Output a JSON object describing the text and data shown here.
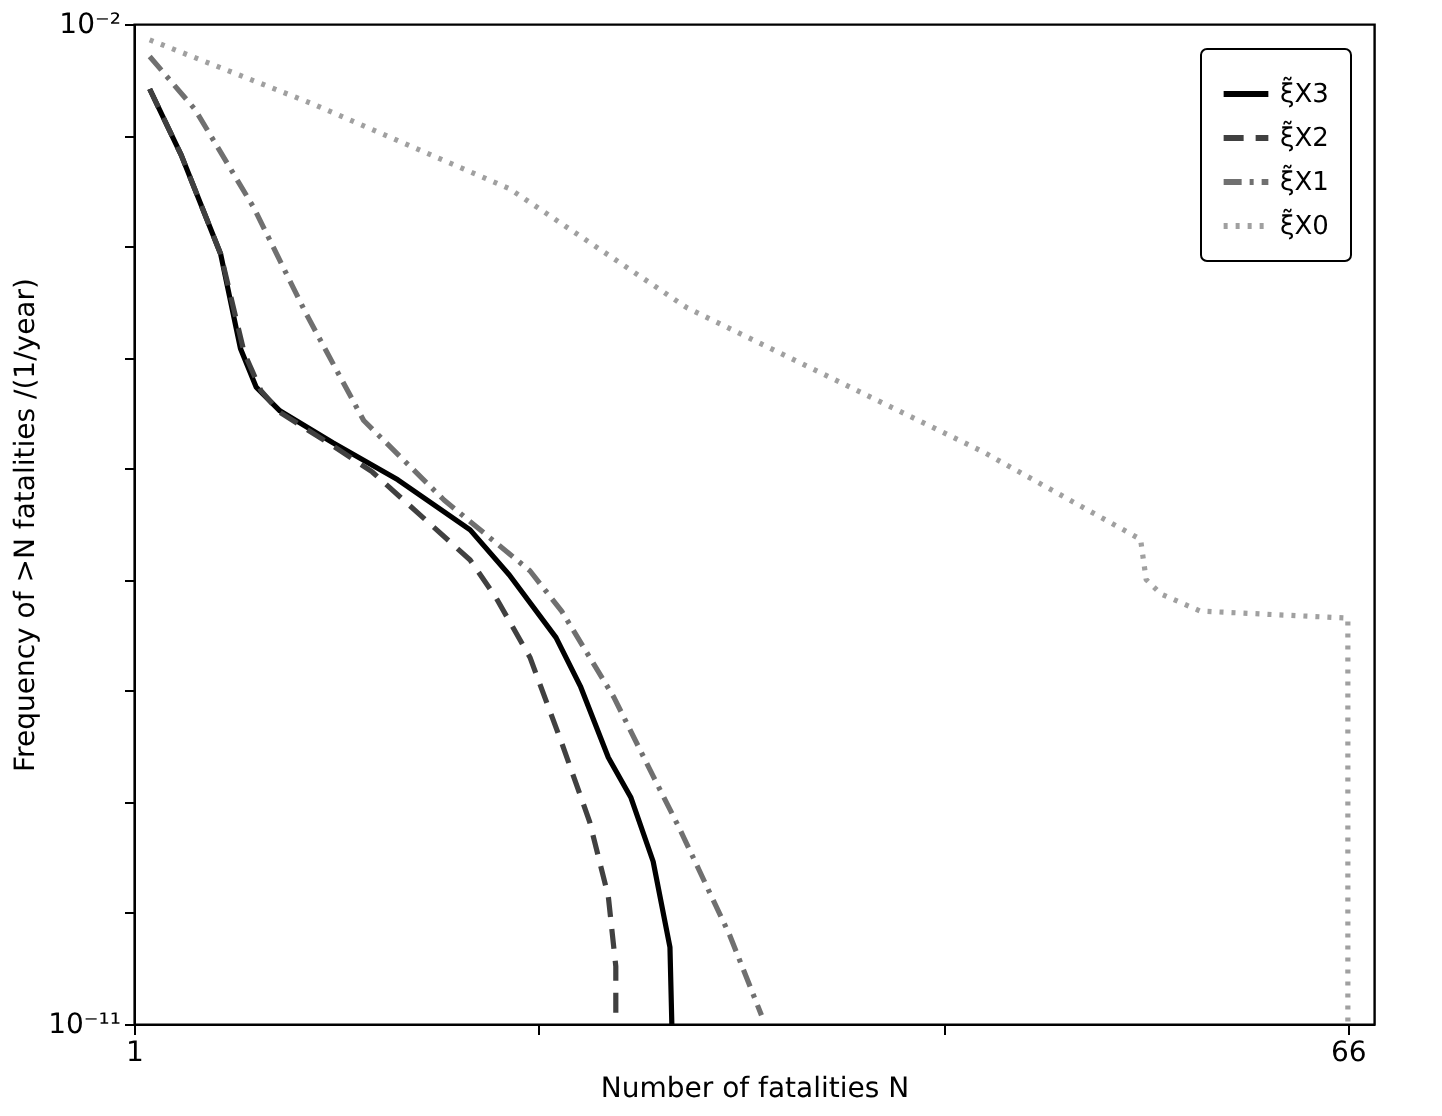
{
  "chart_data": {
    "type": "line",
    "xlabel": "Number of fatalities N",
    "ylabel": "Frequency of >N fatalities /(1/year)",
    "log": "y",
    "grid": false,
    "legend": "top right",
    "marker": "none",
    "tick_labels": "xy",
    "xlim": [
      1,
      67.4
    ],
    "xticks": [
      1,
      {
        "value": 22.67,
        "label": null
      },
      {
        "value": 44.33,
        "label": null
      },
      66
    ],
    "ylim": [
      1e-11,
      0.01
    ],
    "yticks": [
      {
        "value": 0.01,
        "label": "10⁻²"
      },
      {
        "value": 0.001,
        "label": null
      },
      {
        "value": 0.0001,
        "label": null
      },
      {
        "value": 1e-05,
        "label": null
      },
      {
        "value": 1e-06,
        "label": null
      },
      {
        "value": 1e-07,
        "label": null
      },
      {
        "value": 1e-08,
        "label": null
      },
      {
        "value": 1e-09,
        "label": null
      },
      {
        "value": 1e-10,
        "label": null
      },
      {
        "value": 1e-11,
        "label": "10⁻¹¹"
      }
    ],
    "series": [
      {
        "name": "ξ̃X3",
        "color": "#000000",
        "line_style": "solid",
        "x": [
          1.84,
          3.53,
          5.64,
          6.7,
          7.54,
          8.81,
          11.65,
          15.13,
          19.0,
          21.1,
          23.6,
          24.9,
          26.4,
          27.6,
          28.8,
          29.7,
          29.8
        ],
        "values": [
          0.0026,
          0.00066,
          8.5e-05,
          1.2e-05,
          5.4e-06,
          3.3e-06,
          1.7e-06,
          7.9e-07,
          2.8e-07,
          1.1e-07,
          3e-08,
          1.1e-08,
          2.5e-09,
          1.1e-09,
          2.9e-10,
          4.9e-11,
          1e-11
        ]
      },
      {
        "name": "ξ̃X2",
        "color": "#404040",
        "line_style": "dashed",
        "x": [
          1.84,
          3.53,
          5.64,
          6.9,
          7.8,
          8.81,
          11.65,
          13.76,
          19.0,
          20.4,
          22.2,
          23.9,
          25.4,
          26.4,
          26.8,
          26.8
        ],
        "values": [
          0.0026,
          0.00066,
          8.5e-05,
          1.1e-05,
          5e-06,
          3.2e-06,
          1.6e-06,
          9.3e-07,
          1.5e-07,
          6.8e-08,
          2e-08,
          3.4e-09,
          6.6e-10,
          1.4e-10,
          3.3e-11,
          1.2e-11
        ]
      },
      {
        "name": "ξ̃X1",
        "color": "#707070",
        "line_style": "dashdot",
        "x": [
          1.84,
          4.27,
          7.43,
          10.2,
          13.3,
          17.6,
          22.2,
          23.9,
          26.7,
          28.8,
          30.2,
          32.9,
          34.6
        ],
        "values": [
          0.0051,
          0.0017,
          0.00022,
          2.5e-05,
          2.7e-06,
          5.2e-07,
          1.2e-07,
          5.2e-08,
          8.7e-09,
          1.7e-09,
          5.8e-10,
          6.3e-11,
          1.2e-11
        ]
      },
      {
        "name": "ξ̃X0",
        "color": "#a0a0a0",
        "line_style": "dotted",
        "x": [
          1.84,
          10.6,
          21.1,
          30.6,
          46.5,
          54.9,
          55.2,
          56.0,
          58.1,
          66,
          66
        ],
        "values": [
          0.0072,
          0.0019,
          0.00033,
          2.8e-05,
          1.4e-06,
          2.3e-07,
          1e-07,
          7.4e-08,
          5.2e-08,
          4.5e-08,
          1e-11
        ]
      }
    ]
  }
}
